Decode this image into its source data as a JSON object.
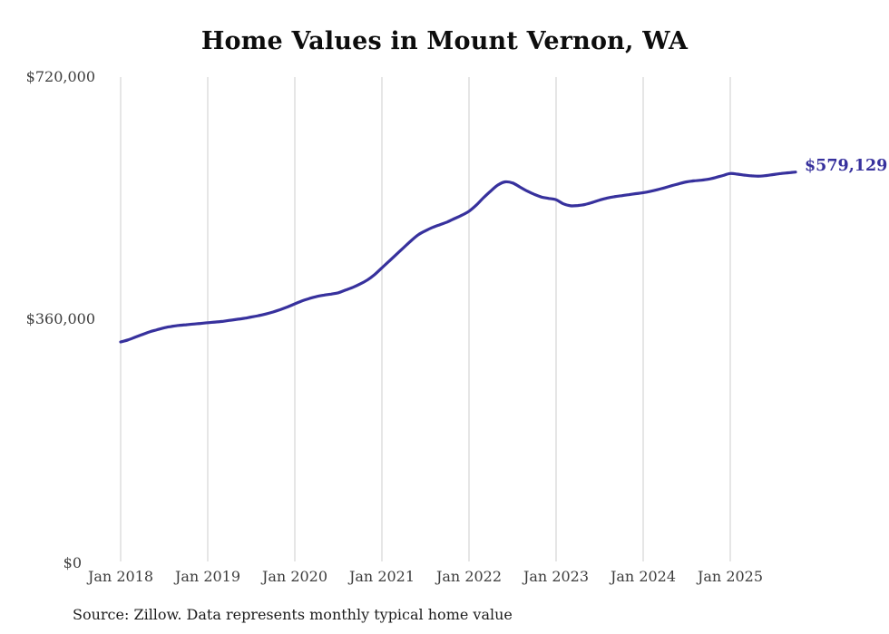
{
  "page": {
    "source_note": "Source: Zillow. Data represents monthly typical home value"
  },
  "chart_data": {
    "type": "line",
    "title": "Home Values in Mount Vernon, WA",
    "series_name": "Typical home value",
    "unit": "USD",
    "frequency": "monthly",
    "x": [
      "2018-01",
      "2018-02",
      "2018-03",
      "2018-04",
      "2018-05",
      "2018-06",
      "2018-07",
      "2018-08",
      "2018-09",
      "2018-10",
      "2018-11",
      "2018-12",
      "2019-01",
      "2019-02",
      "2019-03",
      "2019-04",
      "2019-05",
      "2019-06",
      "2019-07",
      "2019-08",
      "2019-09",
      "2019-10",
      "2019-11",
      "2019-12",
      "2020-01",
      "2020-02",
      "2020-03",
      "2020-04",
      "2020-05",
      "2020-06",
      "2020-07",
      "2020-08",
      "2020-09",
      "2020-10",
      "2020-11",
      "2020-12",
      "2021-01",
      "2021-02",
      "2021-03",
      "2021-04",
      "2021-05",
      "2021-06",
      "2021-07",
      "2021-08",
      "2021-09",
      "2021-10",
      "2021-11",
      "2021-12",
      "2022-01",
      "2022-02",
      "2022-03",
      "2022-04",
      "2022-05",
      "2022-06",
      "2022-07",
      "2022-08",
      "2022-09",
      "2022-10",
      "2022-11",
      "2022-12",
      "2023-01",
      "2023-02",
      "2023-03",
      "2023-04",
      "2023-05",
      "2023-06",
      "2023-07",
      "2023-08",
      "2023-09",
      "2023-10",
      "2023-11",
      "2023-12",
      "2024-01",
      "2024-02",
      "2024-03",
      "2024-04",
      "2024-05",
      "2024-06",
      "2024-07",
      "2024-08",
      "2024-09",
      "2024-10",
      "2024-11",
      "2024-12",
      "2025-01",
      "2025-02",
      "2025-03",
      "2025-04",
      "2025-05",
      "2025-06",
      "2025-07",
      "2025-08",
      "2025-09",
      "2025-10"
    ],
    "values": [
      327000,
      330000,
      334000,
      338000,
      342000,
      345000,
      348000,
      350000,
      351500,
      352500,
      353500,
      354500,
      355500,
      356500,
      357500,
      359000,
      360500,
      362000,
      364000,
      366000,
      368500,
      371500,
      375000,
      379000,
      383500,
      388000,
      391500,
      394500,
      396500,
      398000,
      400000,
      404000,
      408000,
      413000,
      419000,
      427000,
      437000,
      447000,
      457000,
      467000,
      477000,
      486000,
      492000,
      497000,
      501000,
      505000,
      510000,
      515000,
      521000,
      530000,
      541000,
      551000,
      560000,
      564500,
      563000,
      557000,
      551000,
      546000,
      542000,
      540000,
      538000,
      532000,
      529000,
      529500,
      531000,
      534000,
      537500,
      540500,
      542500,
      544000,
      545500,
      547000,
      548500,
      550500,
      553000,
      556000,
      559000,
      562000,
      564500,
      566000,
      567000,
      568500,
      571000,
      574000,
      577000,
      576000,
      574500,
      573500,
      573000,
      574000,
      575500,
      577000,
      578000,
      579129
    ],
    "latest_value": 579129,
    "end_label": "$579,129",
    "ylim": [
      0,
      720000
    ],
    "yticks": [
      {
        "label": "$0",
        "value": 0
      },
      {
        "label": "$360,000",
        "value": 360000
      },
      {
        "label": "$720,000",
        "value": 720000
      }
    ],
    "xticks": [
      {
        "label": "Jan 2018",
        "month_index": 0
      },
      {
        "label": "Jan 2019",
        "month_index": 12
      },
      {
        "label": "Jan 2020",
        "month_index": 24
      },
      {
        "label": "Jan 2021",
        "month_index": 36
      },
      {
        "label": "Jan 2022",
        "month_index": 48
      },
      {
        "label": "Jan 2023",
        "month_index": 60
      },
      {
        "label": "Jan 2024",
        "month_index": 72
      },
      {
        "label": "Jan 2025",
        "month_index": 84
      }
    ],
    "grid": "vertical-only",
    "legend": "none",
    "line_color": "#37319d",
    "label_color": "#37319d",
    "grid_color": "#cccccc",
    "axis_text_color": "#3d3d3d"
  }
}
